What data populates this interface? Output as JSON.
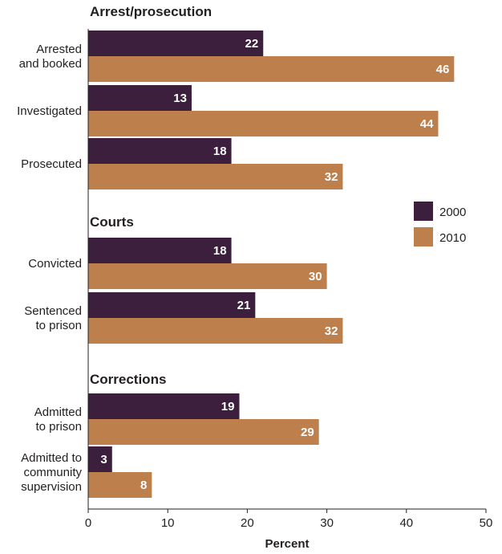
{
  "chart_data": {
    "type": "bar",
    "orientation": "horizontal",
    "xlabel": "Percent",
    "xlim": [
      0,
      50
    ],
    "xticks": [
      "0",
      "10",
      "20",
      "30",
      "40",
      "50"
    ],
    "grid": false,
    "legend_position": "right",
    "colors": {
      "2000": "#3b1f3c",
      "2010": "#bd804d"
    },
    "series": [
      {
        "name": "2000"
      },
      {
        "name": "2010"
      }
    ],
    "groups": [
      {
        "title": "Arrest/prosecution",
        "categories": [
          {
            "label": [
              "Arrested",
              "and booked"
            ],
            "values": [
              22,
              46
            ]
          },
          {
            "label": [
              "Investigated"
            ],
            "values": [
              13,
              44
            ]
          },
          {
            "label": [
              "Prosecuted"
            ],
            "values": [
              18,
              32
            ]
          }
        ]
      },
      {
        "title": "Courts",
        "categories": [
          {
            "label": [
              "Convicted"
            ],
            "values": [
              18,
              30
            ]
          },
          {
            "label": [
              "Sentenced",
              "to prison"
            ],
            "values": [
              21,
              32
            ]
          }
        ]
      },
      {
        "title": "Corrections",
        "categories": [
          {
            "label": [
              "Admitted",
              "to prison"
            ],
            "values": [
              19,
              29
            ]
          },
          {
            "label": [
              "Admitted to",
              "community",
              "supervision"
            ],
            "values": [
              3,
              8
            ]
          }
        ]
      }
    ]
  }
}
